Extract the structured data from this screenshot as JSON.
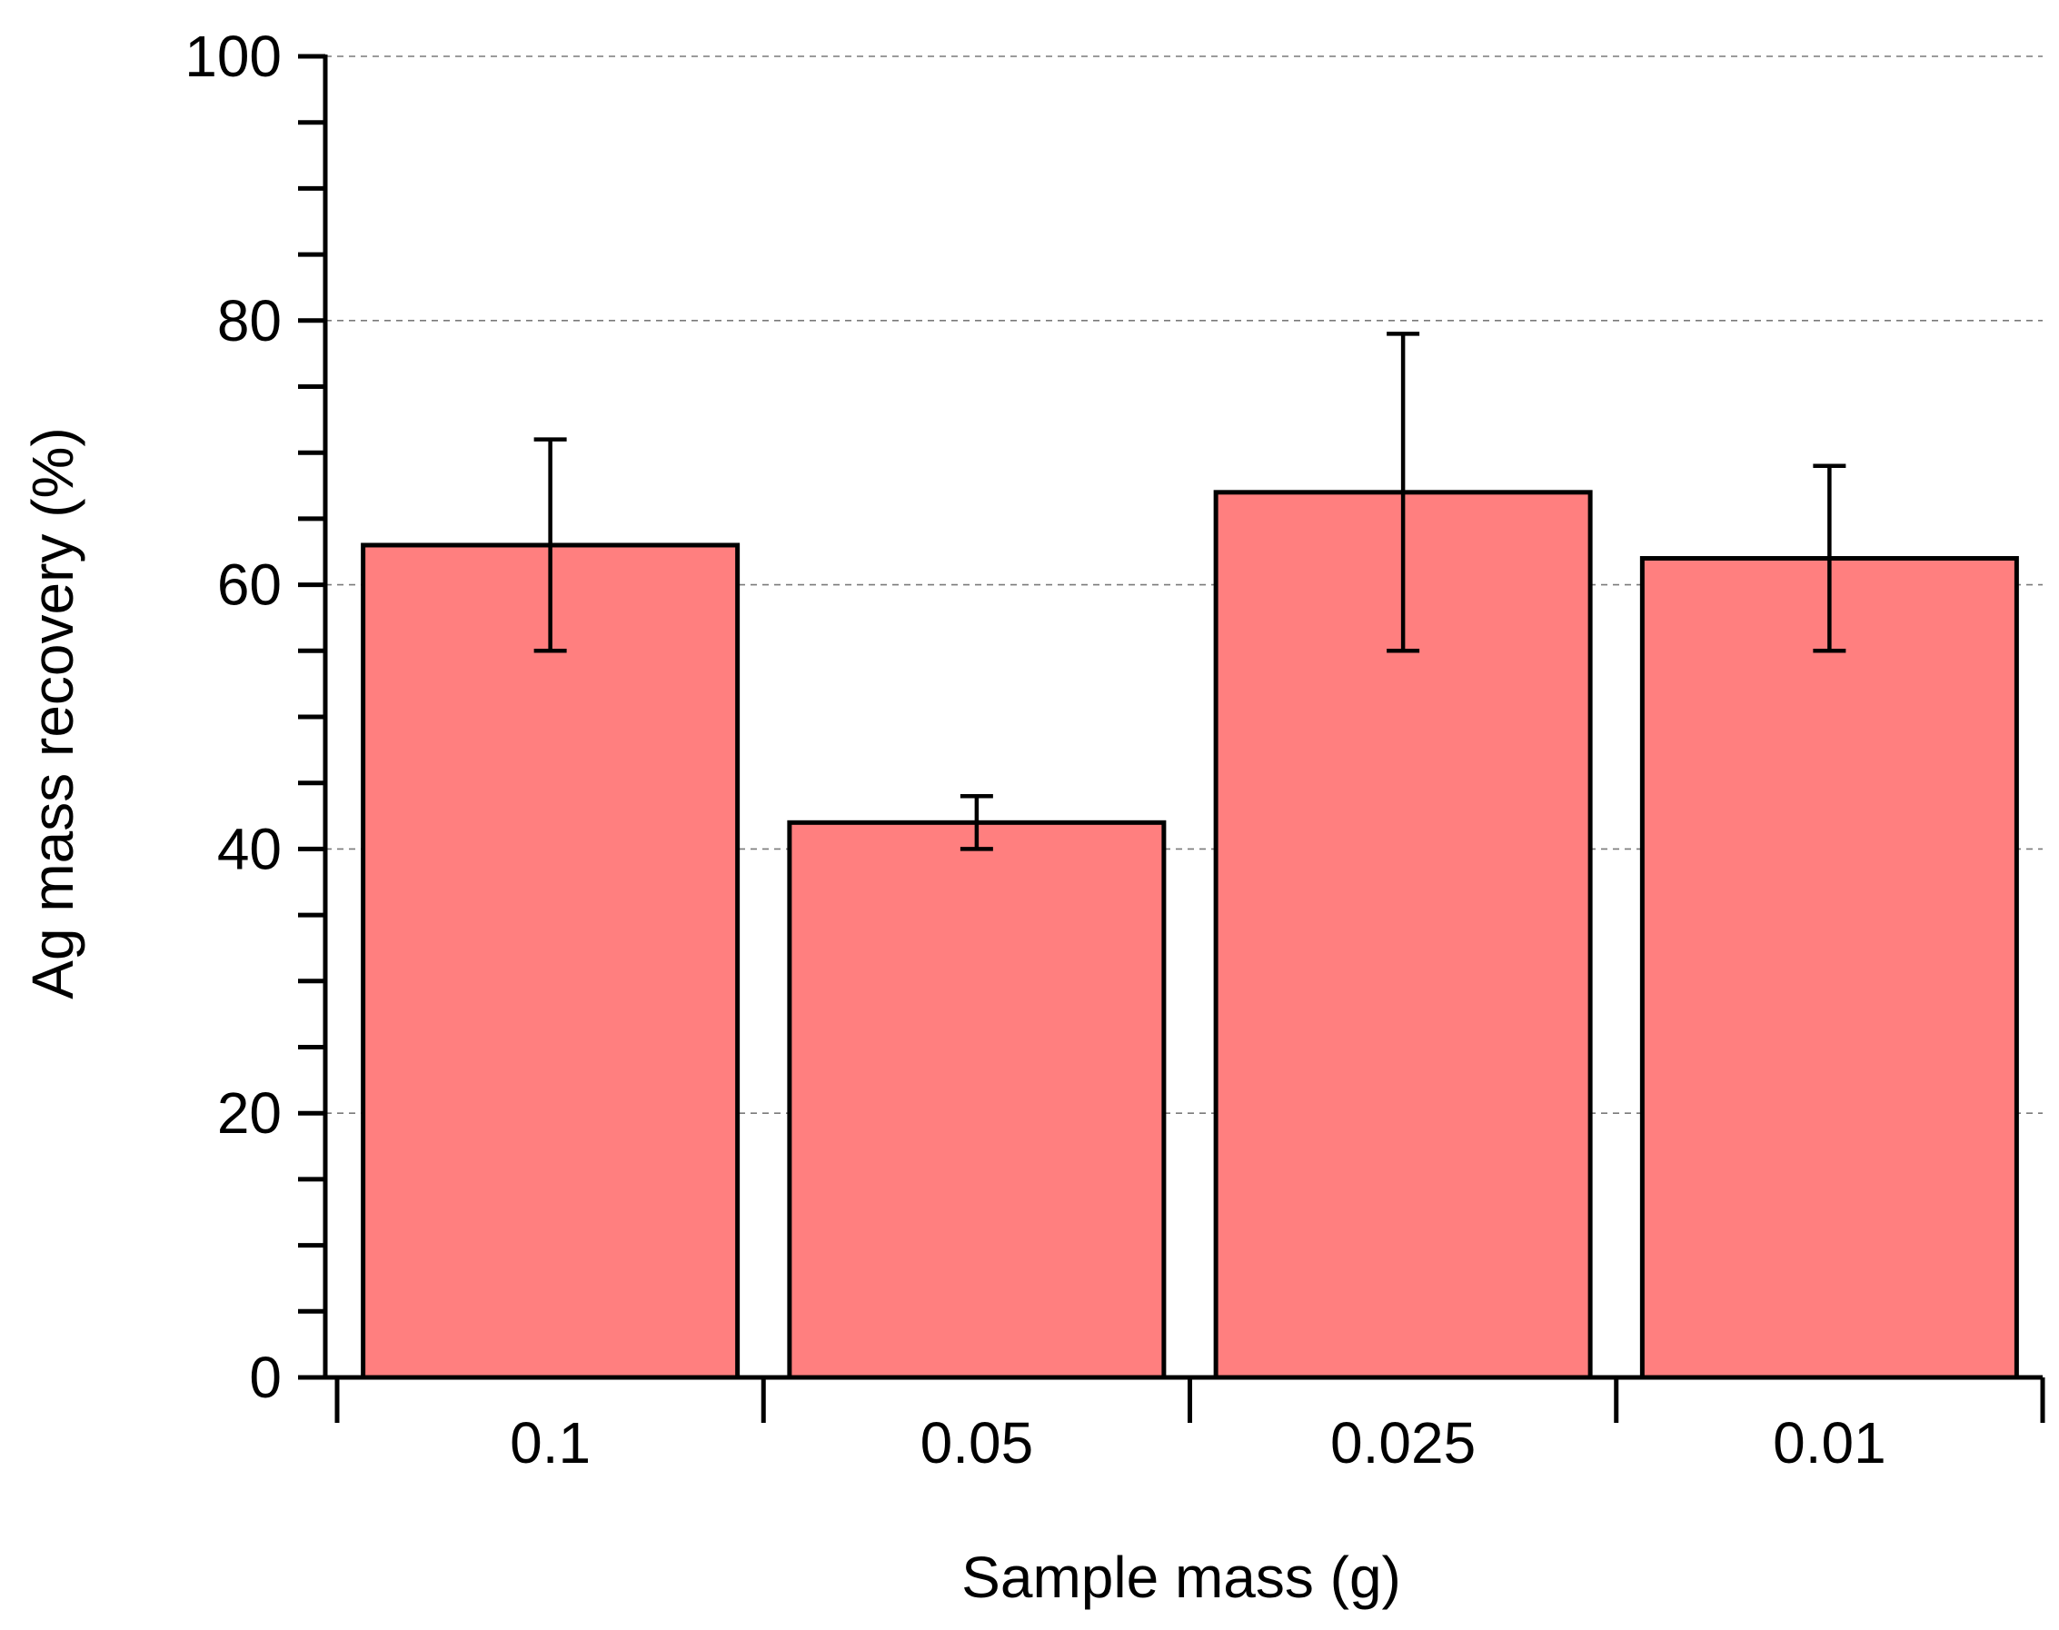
{
  "chart_data": {
    "type": "bar",
    "title": "",
    "xlabel": "Sample mass (g)",
    "ylabel": "Ag mass recovery (%)",
    "categories": [
      "0.1",
      "0.05",
      "0.025",
      "0.01"
    ],
    "values": [
      63,
      42,
      67,
      62
    ],
    "error_low": [
      55,
      40,
      55,
      55
    ],
    "error_high": [
      71,
      44,
      79,
      69
    ],
    "ylim": [
      0,
      100
    ],
    "y_major_ticks": [
      0,
      20,
      40,
      60,
      80,
      100
    ],
    "y_minor_step": 5,
    "grid": "horizontal dashed at major ticks",
    "colors": {
      "bar_fill": "#ff7f7f",
      "bar_stroke": "#000000",
      "grid": "#7a7a7a",
      "axis": "#000000"
    }
  }
}
